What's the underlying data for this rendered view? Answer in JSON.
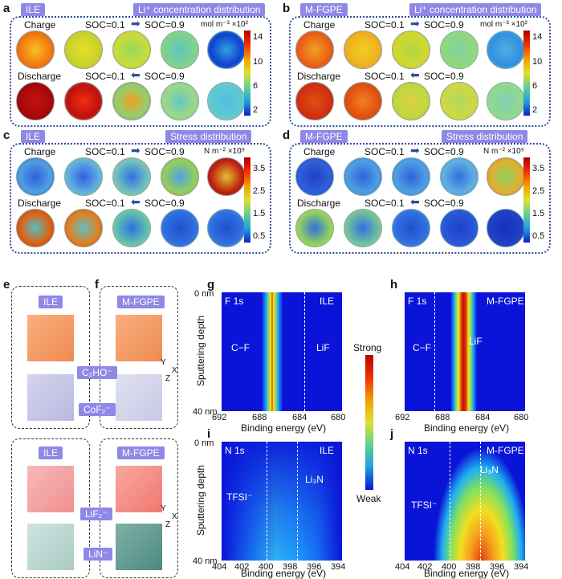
{
  "panels": {
    "a": {
      "letter": "a",
      "tag_left": "ILE",
      "tag_right": "Li⁺ concentration distribution"
    },
    "b": {
      "letter": "b",
      "tag_left": "M-FGPE",
      "tag_right": "Li⁺ concentration distribution"
    },
    "c": {
      "letter": "c",
      "tag_left": "ILE",
      "tag_right": "Stress distribution"
    },
    "d": {
      "letter": "d",
      "tag_left": "M-FGPE",
      "tag_right": "Stress distribution"
    },
    "e": {
      "letter": "e"
    },
    "f": {
      "letter": "f"
    },
    "g": {
      "letter": "g"
    },
    "h": {
      "letter": "h"
    },
    "i": {
      "letter": "i"
    },
    "j": {
      "letter": "j"
    }
  },
  "labels": {
    "charge": "Charge",
    "discharge": "Discharge",
    "soc01": "SOC=0.1",
    "soc09": "SOC=0.9",
    "unit_conc": "mol m⁻³ ×10²",
    "unit_stress": "N m⁻² ×10⁹",
    "conc_ticks": [
      "14",
      "10",
      "6",
      "2"
    ],
    "stress_ticks": [
      "3.5",
      "2.5",
      "1.5",
      "0.5"
    ],
    "ile": "ILE",
    "mfgpe": "M-FGPE",
    "c2ho": "C₂HO⁻",
    "cof2": "CoF₂⁻",
    "lif2": "LiF₂⁻",
    "lin": "LiN⁻",
    "axis_y": "Y",
    "axis_x": "X",
    "axis_z": "Z",
    "f1s": "F 1s",
    "n1s": "N 1s",
    "cf": "C−F",
    "lif": "LiF",
    "tfsi": "TFSI⁻",
    "li3n": "Li₃N",
    "depth0": "0 nm",
    "depth40": "40 nm",
    "sputter": "Sputtering depth",
    "binding": "Binding energy (eV)",
    "strong": "Strong",
    "weak": "Weak",
    "f_ticks": [
      "692",
      "688",
      "684",
      "680"
    ],
    "n_ticks": [
      "404",
      "402",
      "400",
      "398",
      "396",
      "394"
    ]
  },
  "colors": {
    "tag": "#8f88e6",
    "dotted": "#2f4d9a",
    "jet_blue": "#0a14d8"
  }
}
